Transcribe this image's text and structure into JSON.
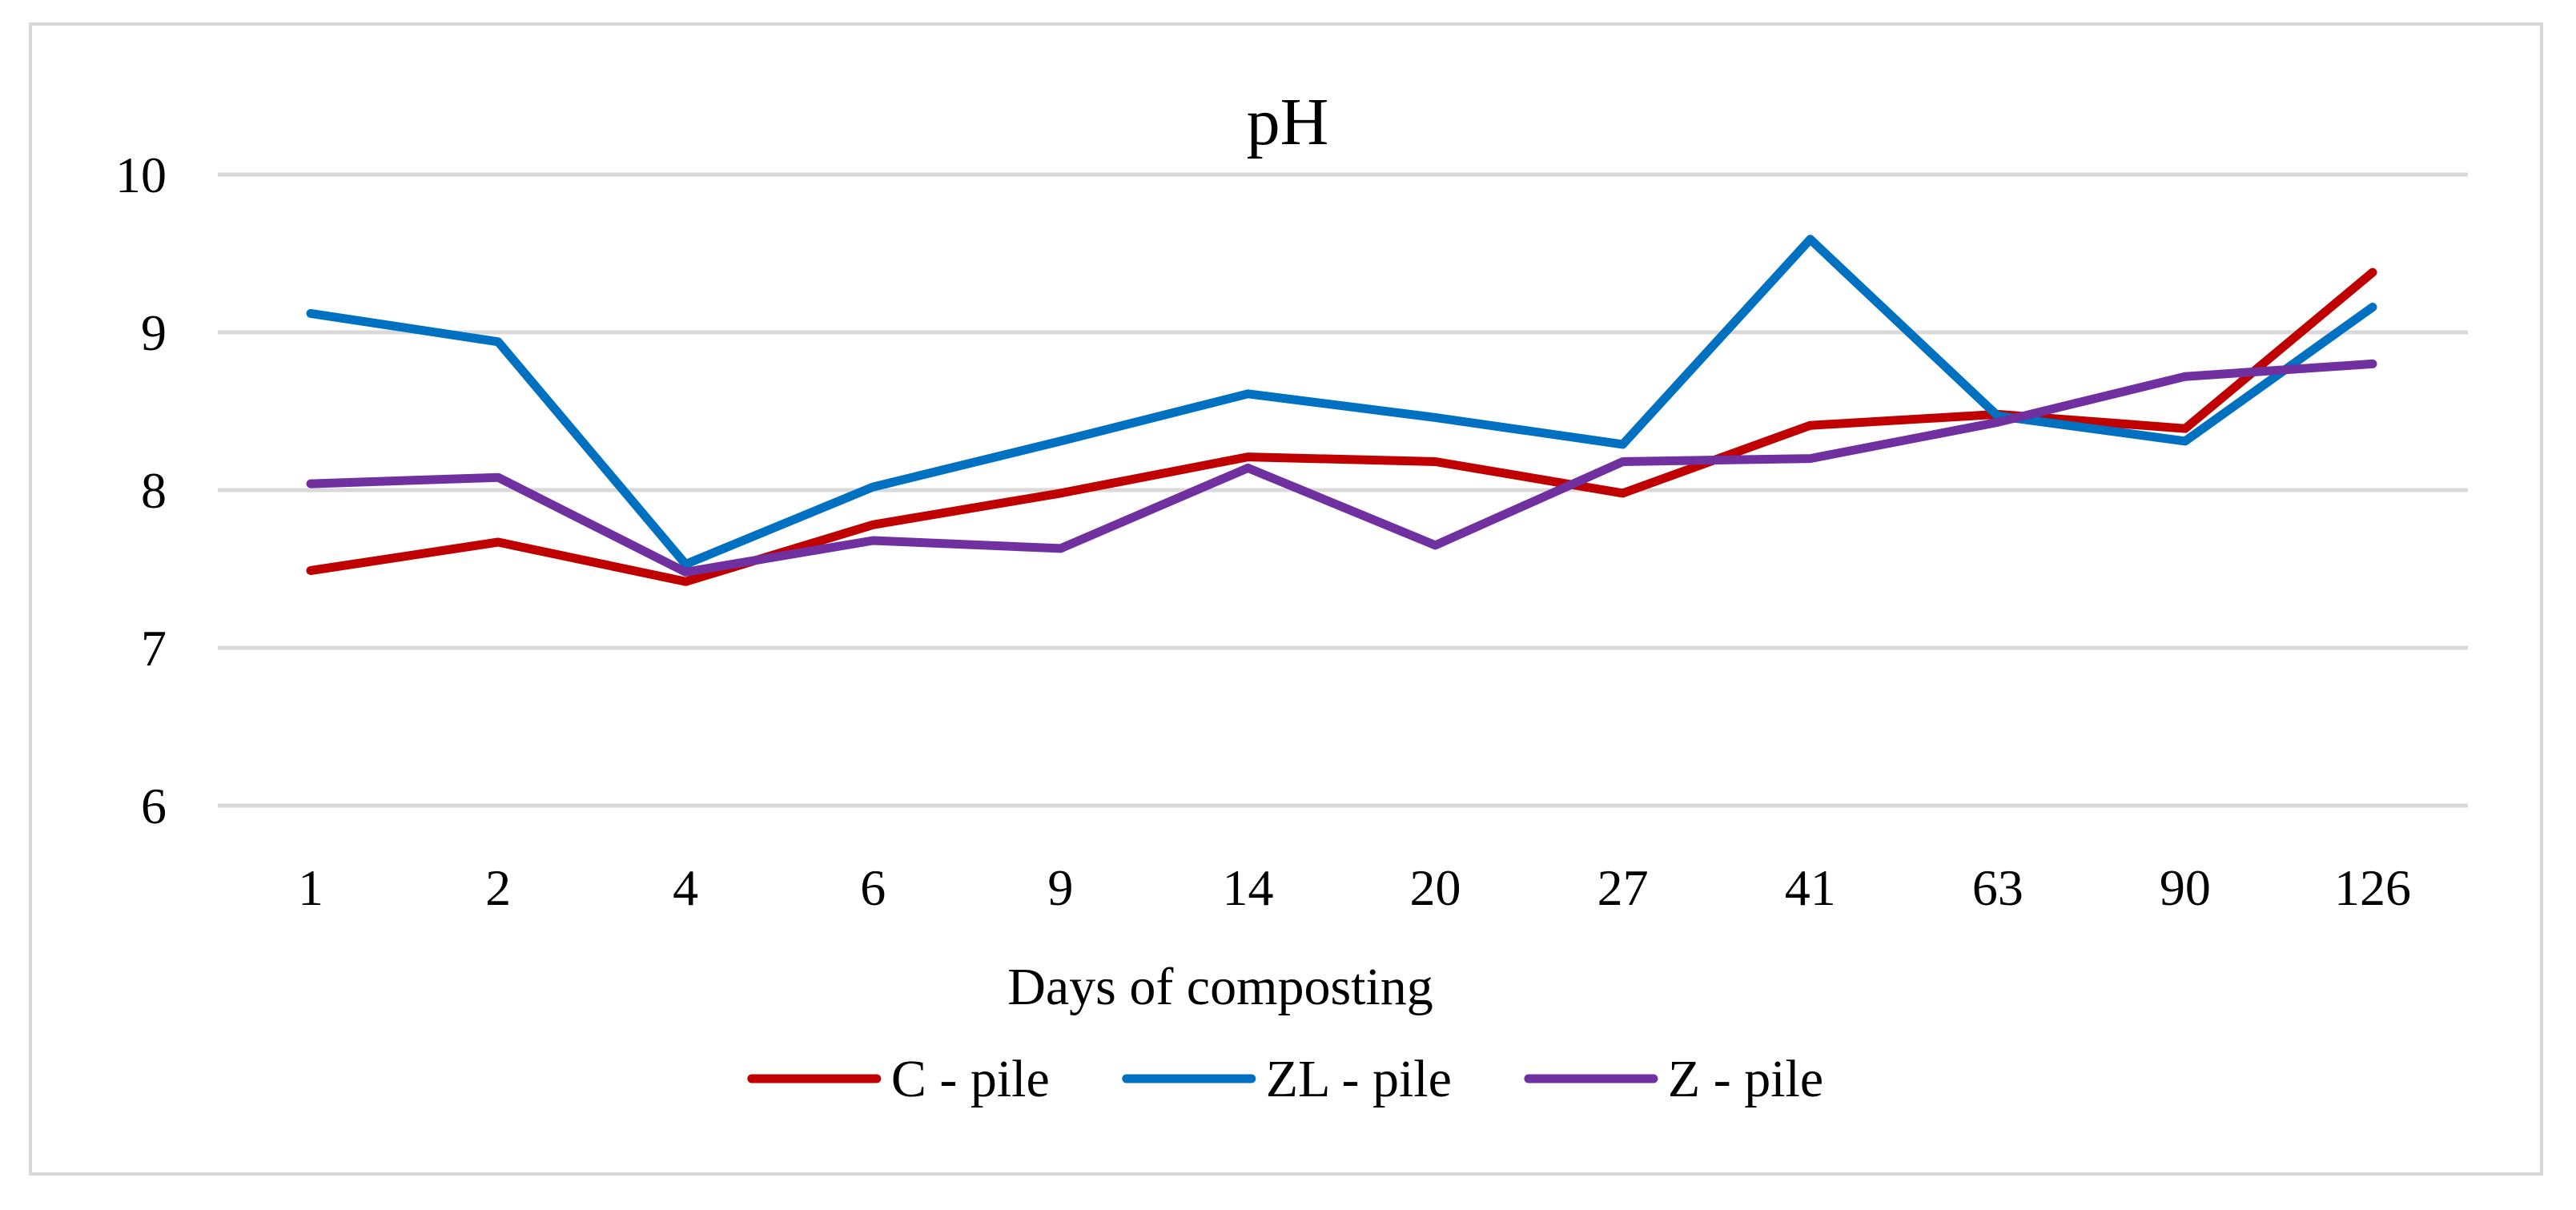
{
  "chart_data": {
    "type": "line",
    "title": "pH",
    "xlabel": "Days of composting",
    "ylabel": "",
    "categories": [
      "1",
      "2",
      "4",
      "6",
      "9",
      "14",
      "20",
      "27",
      "41",
      "63",
      "90",
      "126"
    ],
    "ylim": [
      6,
      10
    ],
    "yticks": [
      "6",
      "7",
      "8",
      "9",
      "10"
    ],
    "grid": "horizontal",
    "legend_position": "bottom",
    "series": [
      {
        "name": "C - pile",
        "color": "#c00000",
        "values": [
          7.49,
          7.67,
          7.42,
          7.78,
          7.98,
          8.21,
          8.18,
          7.98,
          8.41,
          8.48,
          8.39,
          9.38
        ]
      },
      {
        "name": "ZL - pile",
        "color": "#0070c0",
        "values": [
          9.12,
          8.94,
          7.53,
          8.02,
          8.31,
          8.61,
          8.46,
          8.29,
          9.59,
          8.47,
          8.31,
          9.16
        ]
      },
      {
        "name": "Z - pile",
        "color": "#7030a0",
        "values": [
          8.04,
          8.08,
          7.48,
          7.68,
          7.63,
          8.14,
          7.65,
          8.18,
          8.2,
          8.43,
          8.72,
          8.8
        ]
      }
    ]
  }
}
